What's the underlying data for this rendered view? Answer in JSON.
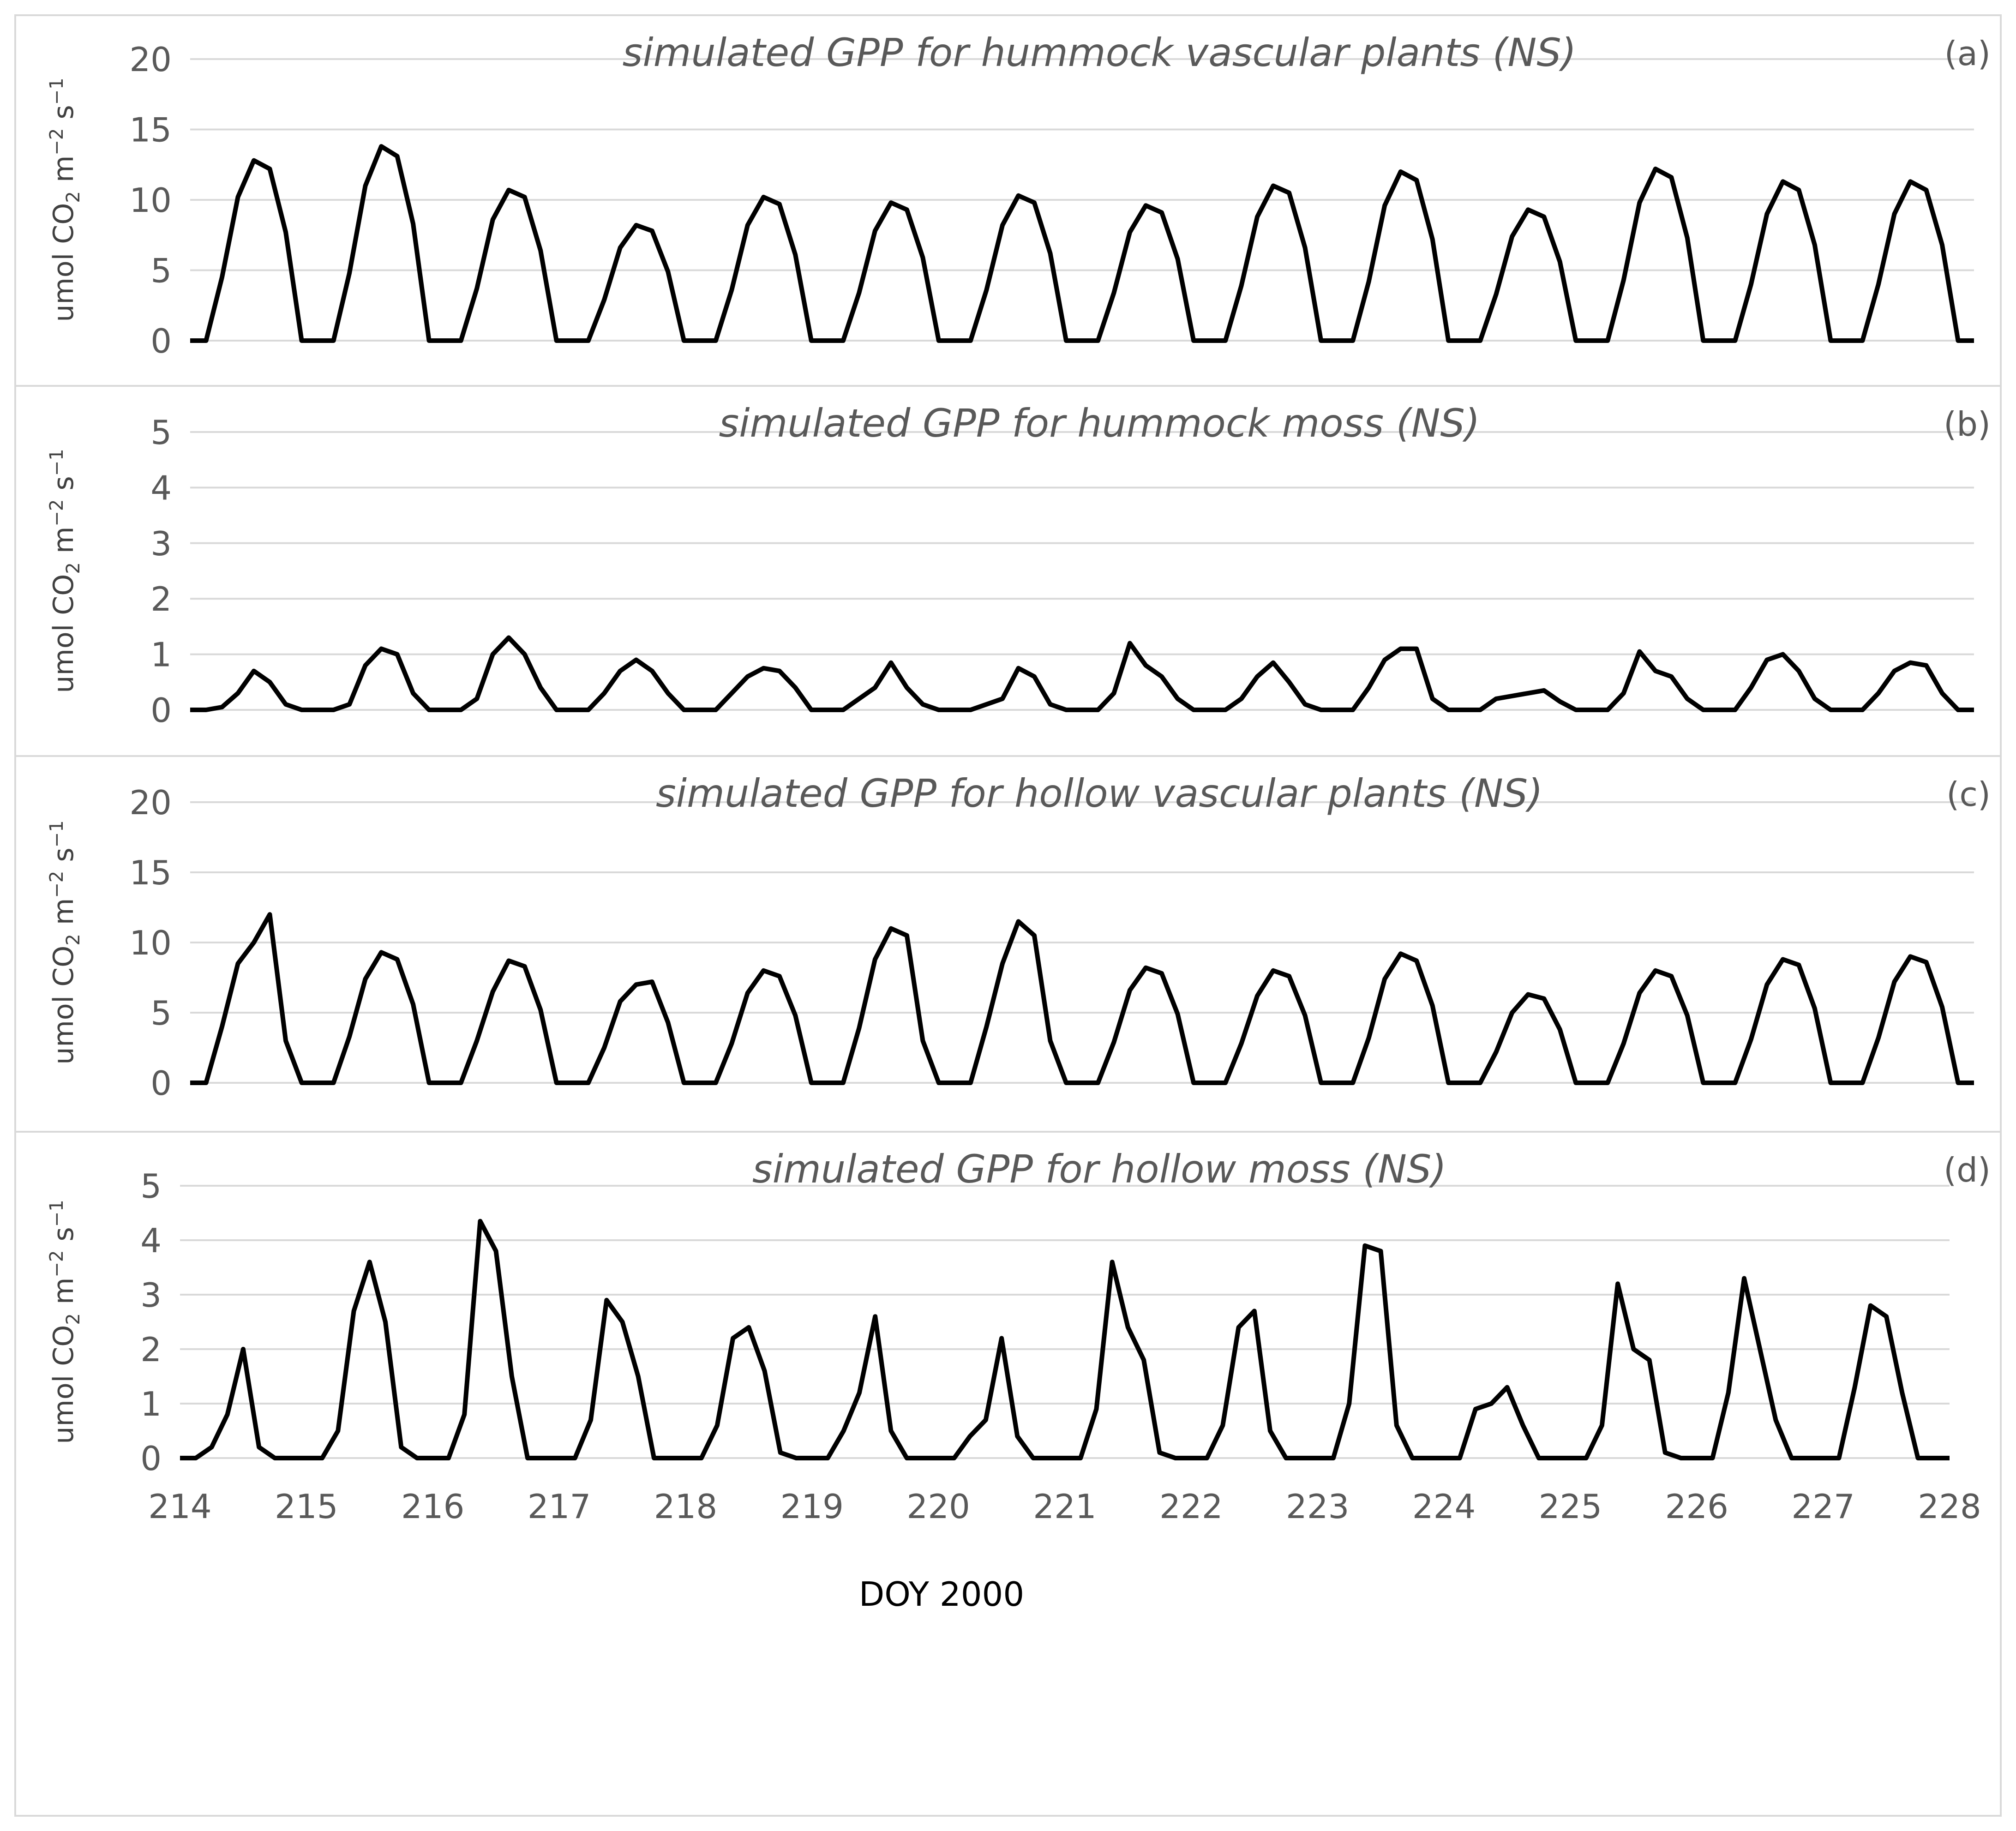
{
  "chart_data": [
    {
      "type": "line",
      "title": "simulated GPP for hummock vascular plants (NS)",
      "panel_label": "(a)",
      "y_label": [
        "umol CO",
        "2",
        " m",
        "−2",
        " s",
        "−1"
      ],
      "color": "#000000",
      "grid": true,
      "xlim": [
        214,
        228
      ],
      "ylim": [
        0,
        20
      ],
      "yticks": [
        0,
        5,
        10,
        15,
        20
      ],
      "x": [
        214,
        214.125,
        214.25,
        214.375,
        214.5,
        214.625,
        214.75,
        214.875,
        215,
        215.125,
        215.25,
        215.375,
        215.5,
        215.625,
        215.75,
        215.875,
        216,
        216.125,
        216.25,
        216.375,
        216.5,
        216.625,
        216.75,
        216.875,
        217,
        217.125,
        217.25,
        217.375,
        217.5,
        217.625,
        217.75,
        217.875,
        218,
        218.125,
        218.25,
        218.375,
        218.5,
        218.625,
        218.75,
        218.875,
        219,
        219.125,
        219.25,
        219.375,
        219.5,
        219.625,
        219.75,
        219.875,
        220,
        220.125,
        220.25,
        220.375,
        220.5,
        220.625,
        220.75,
        220.875,
        221,
        221.125,
        221.25,
        221.375,
        221.5,
        221.625,
        221.75,
        221.875,
        222,
        222.125,
        222.25,
        222.375,
        222.5,
        222.625,
        222.75,
        222.875,
        223,
        223.125,
        223.25,
        223.375,
        223.5,
        223.625,
        223.75,
        223.875,
        224,
        224.125,
        224.25,
        224.375,
        224.5,
        224.625,
        224.75,
        224.875,
        225,
        225.125,
        225.25,
        225.375,
        225.5,
        225.625,
        225.75,
        225.875,
        226,
        226.125,
        226.25,
        226.375,
        226.5,
        226.625,
        226.75,
        226.875,
        227,
        227.125,
        227.25,
        227.375,
        227.5,
        227.625,
        227.75,
        227.875,
        228
      ],
      "values": [
        0,
        0,
        4.5,
        10.2,
        12.8,
        12.2,
        7.7,
        0,
        0,
        0,
        4.8,
        11,
        13.8,
        13.1,
        8.3,
        0,
        0,
        0,
        3.7,
        8.6,
        10.7,
        10.2,
        6.4,
        0,
        0,
        0,
        2.9,
        6.6,
        8.2,
        7.8,
        4.9,
        0,
        0,
        0,
        3.6,
        8.2,
        10.2,
        9.7,
        6.1,
        0,
        0,
        0,
        3.4,
        7.8,
        9.8,
        9.3,
        5.9,
        0,
        0,
        0,
        3.6,
        8.2,
        10.3,
        9.8,
        6.2,
        0,
        0,
        0,
        3.4,
        7.7,
        9.6,
        9.1,
        5.8,
        0,
        0,
        0,
        3.9,
        8.8,
        11,
        10.5,
        6.6,
        0,
        0,
        0,
        4.2,
        9.6,
        12,
        11.4,
        7.2,
        0,
        0,
        0,
        3.3,
        7.4,
        9.3,
        8.8,
        5.6,
        0,
        0,
        0,
        4.3,
        9.8,
        12.2,
        11.6,
        7.3,
        0,
        0,
        0,
        4,
        9,
        11.3,
        10.7,
        6.8,
        0,
        0,
        0,
        4,
        9,
        11.3,
        10.7,
        6.8,
        0,
        0
      ]
    },
    {
      "type": "line",
      "title": "simulated GPP for hummock moss (NS)",
      "panel_label": "(b)",
      "y_label": [
        "umol CO",
        "2",
        " m",
        "−2",
        " s",
        "−1"
      ],
      "color": "#000000",
      "grid": true,
      "xlim": [
        214,
        228
      ],
      "ylim": [
        0,
        5
      ],
      "yticks": [
        0,
        1,
        2,
        3,
        4,
        5
      ],
      "x": [
        214,
        214.125,
        214.25,
        214.375,
        214.5,
        214.625,
        214.75,
        214.875,
        215,
        215.125,
        215.25,
        215.375,
        215.5,
        215.625,
        215.75,
        215.875,
        216,
        216.125,
        216.25,
        216.375,
        216.5,
        216.625,
        216.75,
        216.875,
        217,
        217.125,
        217.25,
        217.375,
        217.5,
        217.625,
        217.75,
        217.875,
        218,
        218.125,
        218.25,
        218.375,
        218.5,
        218.625,
        218.75,
        218.875,
        219,
        219.125,
        219.25,
        219.375,
        219.5,
        219.625,
        219.75,
        219.875,
        220,
        220.125,
        220.25,
        220.375,
        220.5,
        220.625,
        220.75,
        220.875,
        221,
        221.125,
        221.25,
        221.375,
        221.5,
        221.625,
        221.75,
        221.875,
        222,
        222.125,
        222.25,
        222.375,
        222.5,
        222.625,
        222.75,
        222.875,
        223,
        223.125,
        223.25,
        223.375,
        223.5,
        223.625,
        223.75,
        223.875,
        224,
        224.125,
        224.25,
        224.375,
        224.5,
        224.625,
        224.75,
        224.875,
        225,
        225.125,
        225.25,
        225.375,
        225.5,
        225.625,
        225.75,
        225.875,
        226,
        226.125,
        226.25,
        226.375,
        226.5,
        226.625,
        226.75,
        226.875,
        227,
        227.125,
        227.25,
        227.375,
        227.5,
        227.625,
        227.75,
        227.875,
        228
      ],
      "values": [
        0,
        0,
        0.05,
        0.3,
        0.7,
        0.5,
        0.1,
        0,
        0,
        0,
        0.1,
        0.8,
        1.1,
        1,
        0.3,
        0,
        0,
        0,
        0.2,
        1,
        1.3,
        1,
        0.4,
        0,
        0,
        0,
        0.3,
        0.7,
        0.9,
        0.7,
        0.3,
        0,
        0,
        0,
        0.3,
        0.6,
        0.75,
        0.7,
        0.4,
        0,
        0,
        0,
        0.2,
        0.4,
        0.85,
        0.4,
        0.1,
        0,
        0,
        0,
        0.1,
        0.2,
        0.75,
        0.6,
        0.1,
        0,
        0,
        0,
        0.3,
        1.2,
        0.8,
        0.6,
        0.2,
        0,
        0,
        0,
        0.2,
        0.6,
        0.85,
        0.5,
        0.1,
        0,
        0,
        0,
        0.4,
        0.9,
        1.1,
        1.1,
        0.2,
        0,
        0,
        0,
        0.2,
        0.25,
        0.3,
        0.35,
        0.15,
        0,
        0,
        0,
        0.3,
        1.05,
        0.7,
        0.6,
        0.2,
        0,
        0,
        0,
        0.4,
        0.9,
        1,
        0.7,
        0.2,
        0,
        0,
        0,
        0.3,
        0.7,
        0.85,
        0.8,
        0.3,
        0,
        0
      ]
    },
    {
      "type": "line",
      "title": "simulated GPP for hollow vascular plants (NS)",
      "panel_label": "(c)",
      "y_label": [
        "umol CO",
        "2",
        " m",
        "−2",
        " s",
        "−1"
      ],
      "color": "#000000",
      "grid": true,
      "xlim": [
        214,
        228
      ],
      "ylim": [
        0,
        20
      ],
      "yticks": [
        0,
        5,
        10,
        15,
        20
      ],
      "x": [
        214,
        214.125,
        214.25,
        214.375,
        214.5,
        214.625,
        214.75,
        214.875,
        215,
        215.125,
        215.25,
        215.375,
        215.5,
        215.625,
        215.75,
        215.875,
        216,
        216.125,
        216.25,
        216.375,
        216.5,
        216.625,
        216.75,
        216.875,
        217,
        217.125,
        217.25,
        217.375,
        217.5,
        217.625,
        217.75,
        217.875,
        218,
        218.125,
        218.25,
        218.375,
        218.5,
        218.625,
        218.75,
        218.875,
        219,
        219.125,
        219.25,
        219.375,
        219.5,
        219.625,
        219.75,
        219.875,
        220,
        220.125,
        220.25,
        220.375,
        220.5,
        220.625,
        220.75,
        220.875,
        221,
        221.125,
        221.25,
        221.375,
        221.5,
        221.625,
        221.75,
        221.875,
        222,
        222.125,
        222.25,
        222.375,
        222.5,
        222.625,
        222.75,
        222.875,
        223,
        223.125,
        223.25,
        223.375,
        223.5,
        223.625,
        223.75,
        223.875,
        224,
        224.125,
        224.25,
        224.375,
        224.5,
        224.625,
        224.75,
        224.875,
        225,
        225.125,
        225.25,
        225.375,
        225.5,
        225.625,
        225.75,
        225.875,
        226,
        226.125,
        226.25,
        226.375,
        226.5,
        226.625,
        226.75,
        226.875,
        227,
        227.125,
        227.25,
        227.375,
        227.5,
        227.625,
        227.75,
        227.875,
        228
      ],
      "values": [
        0,
        0,
        4,
        8.5,
        10,
        12,
        3,
        0,
        0,
        0,
        3.3,
        7.4,
        9.3,
        8.8,
        5.6,
        0,
        0,
        0,
        3,
        6.5,
        8.7,
        8.3,
        5.2,
        0,
        0,
        0,
        2.5,
        5.8,
        7,
        7.2,
        4.3,
        0,
        0,
        0,
        2.8,
        6.4,
        8,
        7.6,
        4.8,
        0,
        0,
        0,
        3.9,
        8.8,
        11,
        10.5,
        3,
        0,
        0,
        0,
        4,
        8.5,
        11.5,
        10.5,
        3,
        0,
        0,
        0,
        2.9,
        6.6,
        8.2,
        7.8,
        4.9,
        0,
        0,
        0,
        2.8,
        6.2,
        8,
        7.6,
        4.8,
        0,
        0,
        0,
        3.2,
        7.4,
        9.2,
        8.7,
        5.5,
        0,
        0,
        0,
        2.2,
        5,
        6.3,
        6,
        3.8,
        0,
        0,
        0,
        2.8,
        6.4,
        8,
        7.6,
        4.8,
        0,
        0,
        0,
        3.1,
        7,
        8.8,
        8.4,
        5.3,
        0,
        0,
        0,
        3.2,
        7.2,
        9,
        8.6,
        5.4,
        0,
        0
      ]
    },
    {
      "type": "line",
      "title": "simulated GPP for hollow moss (NS)",
      "panel_label": "(d)",
      "y_label": [
        "umol CO",
        "2",
        " m",
        "−2",
        " s",
        "−1"
      ],
      "color": "#000000",
      "grid": true,
      "x_label": "DOY 2000",
      "xlim": [
        214,
        228
      ],
      "xticks": [
        214,
        215,
        216,
        217,
        218,
        219,
        220,
        221,
        222,
        223,
        224,
        225,
        226,
        227,
        228
      ],
      "ylim": [
        0,
        5
      ],
      "yticks": [
        0,
        1,
        2,
        3,
        4,
        5
      ],
      "x": [
        214,
        214.125,
        214.25,
        214.375,
        214.5,
        214.625,
        214.75,
        214.875,
        215,
        215.125,
        215.25,
        215.375,
        215.5,
        215.625,
        215.75,
        215.875,
        216,
        216.125,
        216.25,
        216.375,
        216.5,
        216.625,
        216.75,
        216.875,
        217,
        217.125,
        217.25,
        217.375,
        217.5,
        217.625,
        217.75,
        217.875,
        218,
        218.125,
        218.25,
        218.375,
        218.5,
        218.625,
        218.75,
        218.875,
        219,
        219.125,
        219.25,
        219.375,
        219.5,
        219.625,
        219.75,
        219.875,
        220,
        220.125,
        220.25,
        220.375,
        220.5,
        220.625,
        220.75,
        220.875,
        221,
        221.125,
        221.25,
        221.375,
        221.5,
        221.625,
        221.75,
        221.875,
        222,
        222.125,
        222.25,
        222.375,
        222.5,
        222.625,
        222.75,
        222.875,
        223,
        223.125,
        223.25,
        223.375,
        223.5,
        223.625,
        223.75,
        223.875,
        224,
        224.125,
        224.25,
        224.375,
        224.5,
        224.625,
        224.75,
        224.875,
        225,
        225.125,
        225.25,
        225.375,
        225.5,
        225.625,
        225.75,
        225.875,
        226,
        226.125,
        226.25,
        226.375,
        226.5,
        226.625,
        226.75,
        226.875,
        227,
        227.125,
        227.25,
        227.375,
        227.5,
        227.625,
        227.75,
        227.875,
        228
      ],
      "values": [
        0,
        0,
        0.2,
        0.8,
        2,
        0.2,
        0,
        0,
        0,
        0,
        0.5,
        2.7,
        3.6,
        2.5,
        0.2,
        0,
        0,
        0,
        0.8,
        4.35,
        3.8,
        1.5,
        0,
        0,
        0,
        0,
        0.7,
        2.9,
        2.5,
        1.5,
        0,
        0,
        0,
        0,
        0.6,
        2.2,
        2.4,
        1.6,
        0.1,
        0,
        0,
        0,
        0.5,
        1.2,
        2.6,
        0.5,
        0,
        0,
        0,
        0,
        0.4,
        0.7,
        2.2,
        0.4,
        0,
        0,
        0,
        0,
        0.9,
        3.6,
        2.4,
        1.8,
        0.1,
        0,
        0,
        0,
        0.6,
        2.4,
        2.7,
        0.5,
        0,
        0,
        0,
        0,
        1,
        3.9,
        3.8,
        0.6,
        0,
        0,
        0,
        0,
        0.9,
        1,
        1.3,
        0.6,
        0,
        0,
        0,
        0,
        0.6,
        3.2,
        2,
        1.8,
        0.1,
        0,
        0,
        0,
        1.2,
        3.3,
        2,
        0.7,
        0,
        0,
        0,
        0,
        1.3,
        2.8,
        2.6,
        1.2,
        0,
        0,
        0
      ]
    }
  ]
}
